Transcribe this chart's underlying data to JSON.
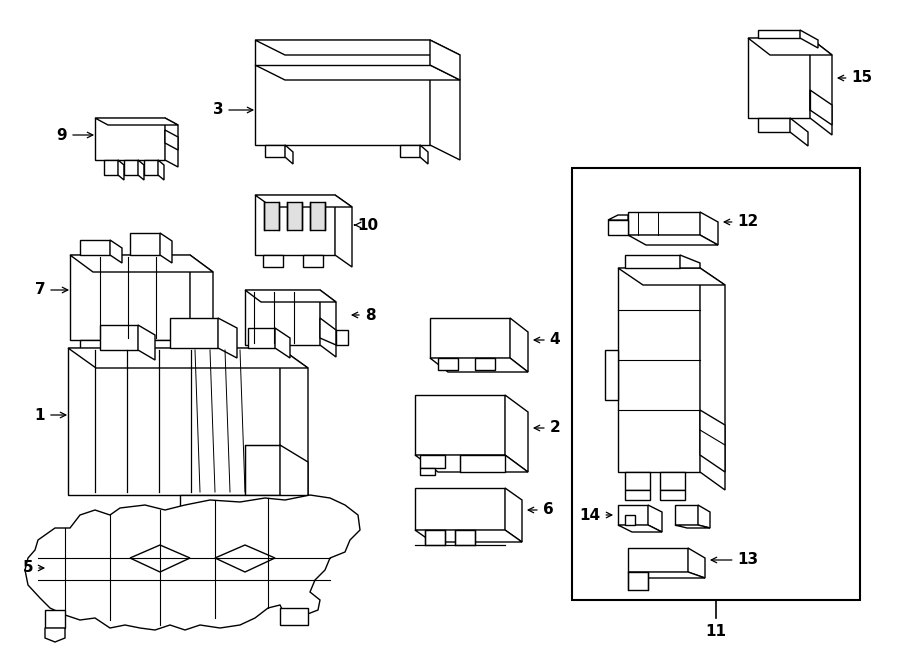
{
  "fig_width": 9.0,
  "fig_height": 6.61,
  "dpi": 100,
  "bg": "#ffffff",
  "lc": "#000000",
  "lw": 1.0
}
